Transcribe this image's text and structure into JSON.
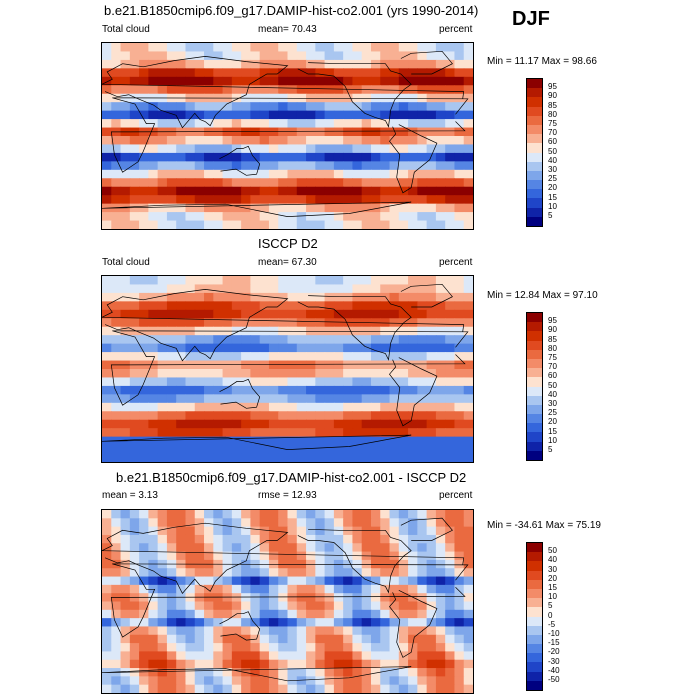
{
  "season": "DJF",
  "panels": [
    {
      "title": "b.e21.B1850cmip6.f09_g17.DAMIP-hist-co2.001 (yrs 1990-2014)",
      "left_label": "Total cloud",
      "mid_label": "mean=  70.43",
      "right_label": "percent",
      "minmax": "Min =  11.17 Max =  98.66",
      "colorbar": [
        "95",
        "90",
        "85",
        "80",
        "75",
        "70",
        "60",
        "50",
        "40",
        "30",
        "25",
        "20",
        "15",
        "10",
        "5"
      ],
      "colorbar_colors": [
        "#8b0000",
        "#b41a00",
        "#d03000",
        "#e04a20",
        "#ea6a40",
        "#f38b68",
        "#f8b093",
        "#fde2d0",
        "#dce8f8",
        "#a9c6f0",
        "#7ea6ea",
        "#5585e4",
        "#3466dc",
        "#1f45c8",
        "#0f23a8",
        "#000080"
      ],
      "field": "model"
    },
    {
      "title": "ISCCP D2",
      "left_label": "Total cloud",
      "mid_label": "mean=  67.30",
      "right_label": "percent",
      "minmax": "Min =  12.84 Max =  97.10",
      "colorbar": [
        "95",
        "90",
        "85",
        "80",
        "75",
        "70",
        "60",
        "50",
        "40",
        "30",
        "25",
        "20",
        "15",
        "10",
        "5"
      ],
      "colorbar_colors": [
        "#8b0000",
        "#b41a00",
        "#d03000",
        "#e04a20",
        "#ea6a40",
        "#f38b68",
        "#f8b093",
        "#fde2d0",
        "#dce8f8",
        "#a9c6f0",
        "#7ea6ea",
        "#5585e4",
        "#3466dc",
        "#1f45c8",
        "#0f23a8",
        "#000080"
      ],
      "field": "obs"
    },
    {
      "title": "b.e21.B1850cmip6.f09_g17.DAMIP-hist-co2.001 - ISCCP D2",
      "left_label": "mean =  3.13",
      "mid_label": "rmse =  12.93",
      "right_label": "percent",
      "minmax": "Min = -34.61 Max =  75.19",
      "colorbar": [
        "50",
        "40",
        "30",
        "20",
        "15",
        "10",
        "5",
        "0",
        "-5",
        "-10",
        "-15",
        "-20",
        "-30",
        "-40",
        "-50"
      ],
      "colorbar_colors": [
        "#8b0000",
        "#b41a00",
        "#d03000",
        "#e04a20",
        "#ea6a40",
        "#f38b68",
        "#f8b093",
        "#fde2d0",
        "#dce8f8",
        "#a9c6f0",
        "#7ea6ea",
        "#5585e4",
        "#3466dc",
        "#1f45c8",
        "#0f23a8",
        "#000080"
      ],
      "field": "diff"
    }
  ]
}
